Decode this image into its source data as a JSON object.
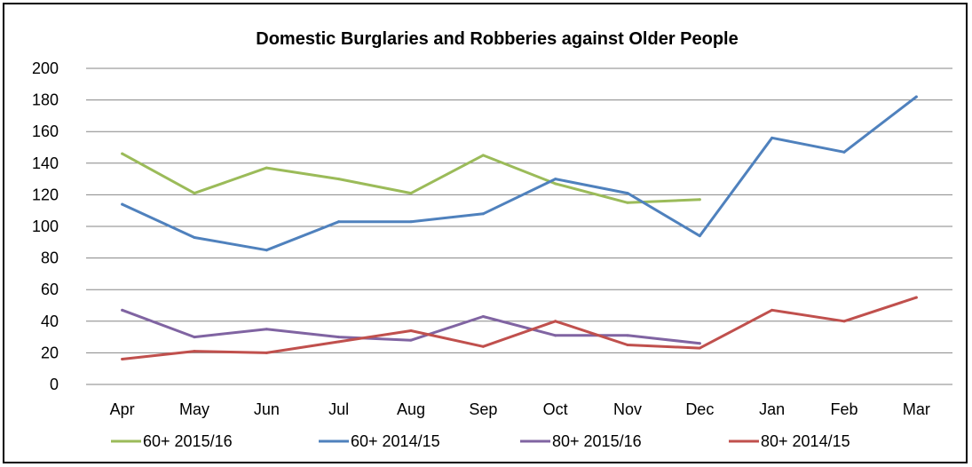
{
  "chart_data": {
    "type": "line",
    "title": "Domestic Burglaries and Robberies against Older People",
    "xlabel": "",
    "ylabel": "",
    "categories": [
      "Apr",
      "May",
      "Jun",
      "Jul",
      "Aug",
      "Sep",
      "Oct",
      "Nov",
      "Dec",
      "Jan",
      "Feb",
      "Mar"
    ],
    "ylim": [
      0,
      200
    ],
    "yticks": [
      0,
      20,
      40,
      60,
      80,
      100,
      120,
      140,
      160,
      180,
      200
    ],
    "grid": "horizontal",
    "legend_position": "bottom",
    "series": [
      {
        "name": "60+ 2015/16",
        "color": "#9BBB59",
        "values": [
          146,
          121,
          137,
          130,
          121,
          145,
          127,
          115,
          117,
          null,
          null,
          null
        ]
      },
      {
        "name": "60+ 2014/15",
        "color": "#4F81BD",
        "values": [
          114,
          93,
          85,
          103,
          103,
          108,
          130,
          121,
          94,
          156,
          147,
          182
        ]
      },
      {
        "name": "80+ 2015/16",
        "color": "#8064A2",
        "values": [
          47,
          30,
          35,
          30,
          28,
          43,
          31,
          31,
          26,
          null,
          null,
          null
        ]
      },
      {
        "name": "80+ 2014/15",
        "color": "#C0504D",
        "values": [
          16,
          21,
          20,
          27,
          34,
          24,
          40,
          25,
          23,
          47,
          40,
          55
        ]
      }
    ]
  }
}
